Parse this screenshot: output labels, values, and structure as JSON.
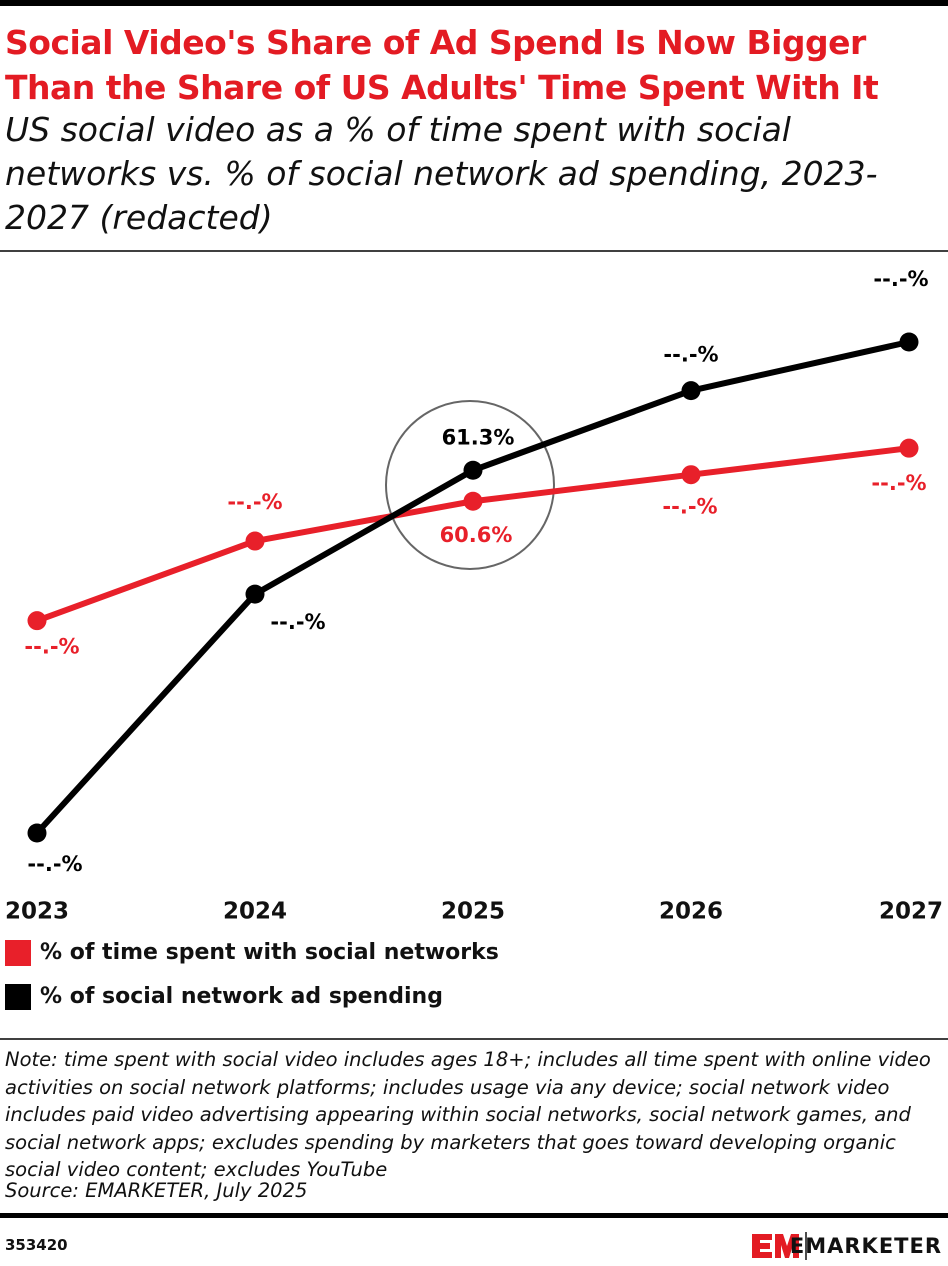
{
  "chart_data": {
    "type": "line",
    "title": "Social Video's Share of Ad Spend Is Now Bigger Than the Share of US Adults' Time Spent With It",
    "subtitle": "US social video as a % of time spent with social networks vs. % of social network ad spending, 2023-2027 (redacted)",
    "categories": [
      "2023",
      "2024",
      "2025",
      "2026",
      "2027"
    ],
    "series": [
      {
        "name": "% of time spent with social networks",
        "color": "#e8202a",
        "values": [
          57.9,
          59.7,
          60.6,
          61.2,
          61.8
        ],
        "value_labels": [
          "--.-%",
          "--.-%",
          "60.6%",
          "--.-%",
          "--.-%"
        ]
      },
      {
        "name": "% of social network ad spending",
        "color": "#000000",
        "values": [
          53.1,
          58.5,
          61.3,
          63.1,
          64.2
        ],
        "value_labels": [
          "--.-%",
          "--.-%",
          "61.3%",
          "--.-%",
          "--.-%"
        ]
      }
    ],
    "grid": false,
    "note": "Note: time spent with social video includes ages 18+; includes all time spent with online video activities on social network platforms; includes usage via any device; social network video includes paid video advertising appearing within social networks, social network games, and social network apps; excludes spending by marketers that goes toward developing organic social video content; excludes YouTube",
    "source": "Source: EMARKETER, July 2025",
    "chart_id": "353420",
    "brand": "EMARKETER"
  }
}
